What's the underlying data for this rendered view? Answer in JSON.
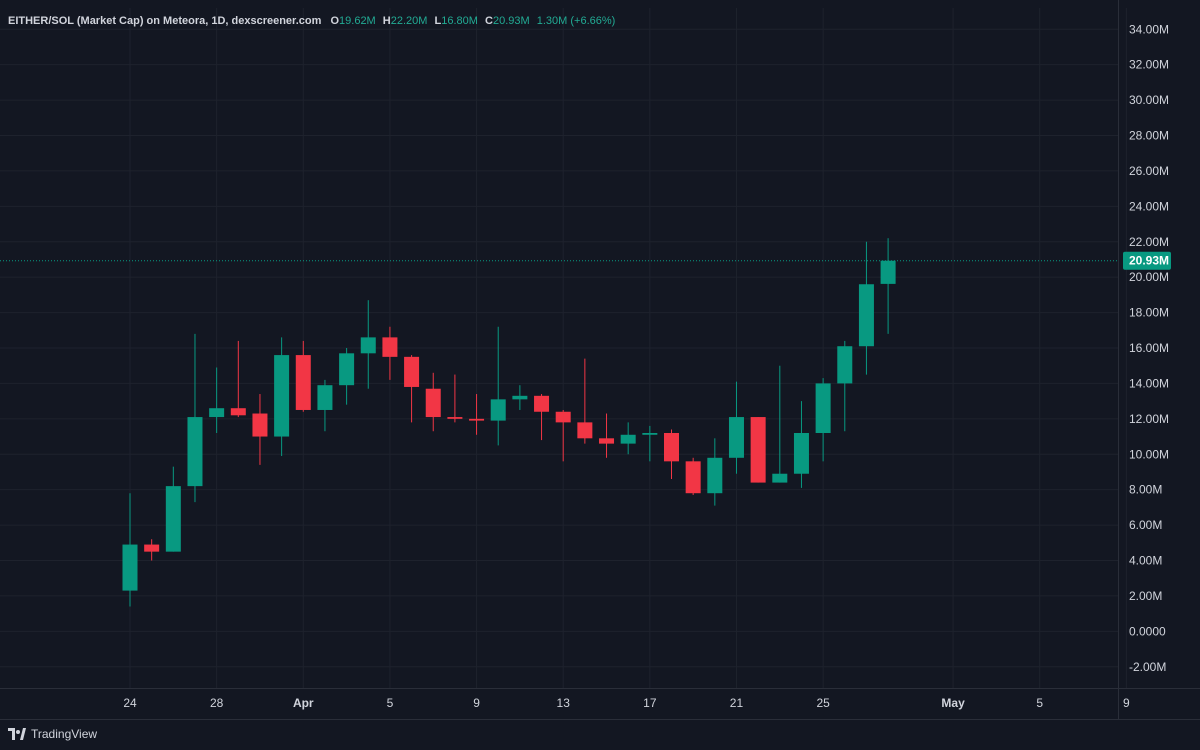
{
  "header": {
    "title": "EITHER/SOL (Market Cap) on Meteora, 1D, dexscreener.com",
    "o_label": "O",
    "o_value": "19.62M",
    "h_label": "H",
    "h_value": "22.20M",
    "l_label": "L",
    "l_value": "16.80M",
    "c_label": "C",
    "c_value": "20.93M",
    "change": "1.30M (+6.66%)"
  },
  "brand": {
    "name": "TradingView",
    "icon": "tradingview-logo-icon"
  },
  "colors": {
    "background": "#131722",
    "grid": "#1e222d",
    "up": "#089981",
    "down": "#f23645",
    "axis_text": "#d1d4dc",
    "price_line": "#089981"
  },
  "chart_data": {
    "type": "candlestick",
    "title": "EITHER/SOL (Market Cap) on Meteora, 1D, dexscreener.com",
    "xlabel": "",
    "ylabel": "",
    "ylim": [
      -3.2,
      35.2
    ],
    "y_ticks": [
      "34.00M",
      "32.00M",
      "30.00M",
      "28.00M",
      "26.00M",
      "24.00M",
      "22.00M",
      "20.00M",
      "18.00M",
      "16.00M",
      "14.00M",
      "12.00M",
      "10.00M",
      "8.00M",
      "6.00M",
      "4.00M",
      "2.00M",
      "0.0000",
      "-2.00M"
    ],
    "y_tick_values": [
      34,
      32,
      30,
      28,
      26,
      24,
      22,
      20,
      18,
      16,
      14,
      12,
      10,
      8,
      6,
      4,
      2,
      0,
      -2
    ],
    "x_ticks": [
      "24",
      "28",
      "Apr",
      "5",
      "9",
      "13",
      "17",
      "21",
      "25",
      "May",
      "5",
      "9"
    ],
    "x_tick_dates": [
      "2025-03-24",
      "2025-03-28",
      "2025-04-01",
      "2025-04-05",
      "2025-04-09",
      "2025-04-13",
      "2025-04-17",
      "2025-04-21",
      "2025-04-25",
      "2025-05-01",
      "2025-05-05",
      "2025-05-09"
    ],
    "grid": true,
    "last_price": 20.93,
    "last_price_label": "20.93M",
    "candles": [
      {
        "date": "2025-03-24",
        "o": 2.3,
        "h": 7.8,
        "l": 1.4,
        "c": 4.9
      },
      {
        "date": "2025-03-25",
        "o": 4.9,
        "h": 5.2,
        "l": 4.0,
        "c": 4.5
      },
      {
        "date": "2025-03-26",
        "o": 4.5,
        "h": 9.3,
        "l": 4.5,
        "c": 8.2
      },
      {
        "date": "2025-03-27",
        "o": 8.2,
        "h": 16.8,
        "l": 7.3,
        "c": 12.1
      },
      {
        "date": "2025-03-28",
        "o": 12.1,
        "h": 14.9,
        "l": 11.2,
        "c": 12.6
      },
      {
        "date": "2025-03-29",
        "o": 12.6,
        "h": 16.4,
        "l": 12.1,
        "c": 12.2
      },
      {
        "date": "2025-03-30",
        "o": 12.3,
        "h": 13.4,
        "l": 9.4,
        "c": 11.0
      },
      {
        "date": "2025-03-31",
        "o": 11.0,
        "h": 16.6,
        "l": 9.9,
        "c": 15.6
      },
      {
        "date": "2025-04-01",
        "o": 15.6,
        "h": 16.4,
        "l": 12.4,
        "c": 12.5
      },
      {
        "date": "2025-04-02",
        "o": 12.5,
        "h": 14.2,
        "l": 11.3,
        "c": 13.9
      },
      {
        "date": "2025-04-03",
        "o": 13.9,
        "h": 16.0,
        "l": 12.8,
        "c": 15.7
      },
      {
        "date": "2025-04-04",
        "o": 15.7,
        "h": 18.7,
        "l": 13.7,
        "c": 16.6
      },
      {
        "date": "2025-04-05",
        "o": 16.6,
        "h": 17.2,
        "l": 14.2,
        "c": 15.5
      },
      {
        "date": "2025-04-06",
        "o": 15.5,
        "h": 15.6,
        "l": 11.8,
        "c": 13.8
      },
      {
        "date": "2025-04-07",
        "o": 13.7,
        "h": 14.6,
        "l": 11.3,
        "c": 12.1
      },
      {
        "date": "2025-04-08",
        "o": 12.1,
        "h": 14.5,
        "l": 11.8,
        "c": 12.0
      },
      {
        "date": "2025-04-09",
        "o": 12.0,
        "h": 13.4,
        "l": 11.1,
        "c": 11.9
      },
      {
        "date": "2025-04-10",
        "o": 11.9,
        "h": 17.2,
        "l": 10.5,
        "c": 13.1
      },
      {
        "date": "2025-04-11",
        "o": 13.1,
        "h": 13.9,
        "l": 12.5,
        "c": 13.3
      },
      {
        "date": "2025-04-12",
        "o": 13.3,
        "h": 13.4,
        "l": 10.8,
        "c": 12.4
      },
      {
        "date": "2025-04-13",
        "o": 12.4,
        "h": 12.5,
        "l": 9.6,
        "c": 11.8
      },
      {
        "date": "2025-04-14",
        "o": 11.8,
        "h": 15.4,
        "l": 10.6,
        "c": 10.9
      },
      {
        "date": "2025-04-15",
        "o": 10.9,
        "h": 12.3,
        "l": 9.8,
        "c": 10.6
      },
      {
        "date": "2025-04-16",
        "o": 10.6,
        "h": 11.8,
        "l": 10.0,
        "c": 11.1
      },
      {
        "date": "2025-04-17",
        "o": 11.1,
        "h": 11.6,
        "l": 9.6,
        "c": 11.2
      },
      {
        "date": "2025-04-18",
        "o": 11.2,
        "h": 11.4,
        "l": 8.6,
        "c": 9.6
      },
      {
        "date": "2025-04-19",
        "o": 9.6,
        "h": 9.8,
        "l": 7.7,
        "c": 7.8
      },
      {
        "date": "2025-04-20",
        "o": 7.8,
        "h": 10.9,
        "l": 7.1,
        "c": 9.8
      },
      {
        "date": "2025-04-21",
        "o": 9.8,
        "h": 14.1,
        "l": 8.9,
        "c": 12.1
      },
      {
        "date": "2025-04-22",
        "o": 12.1,
        "h": 12.1,
        "l": 8.4,
        "c": 8.4
      },
      {
        "date": "2025-04-23",
        "o": 8.4,
        "h": 15.0,
        "l": 8.4,
        "c": 8.9
      },
      {
        "date": "2025-04-24",
        "o": 8.9,
        "h": 13.0,
        "l": 8.1,
        "c": 11.2
      },
      {
        "date": "2025-04-25",
        "o": 11.2,
        "h": 14.3,
        "l": 9.6,
        "c": 14.0
      },
      {
        "date": "2025-04-26",
        "o": 14.0,
        "h": 16.4,
        "l": 11.3,
        "c": 16.1
      },
      {
        "date": "2025-04-27",
        "o": 16.1,
        "h": 22.0,
        "l": 14.5,
        "c": 19.6
      },
      {
        "date": "2025-04-28",
        "o": 19.62,
        "h": 22.2,
        "l": 16.8,
        "c": 20.93
      }
    ]
  }
}
